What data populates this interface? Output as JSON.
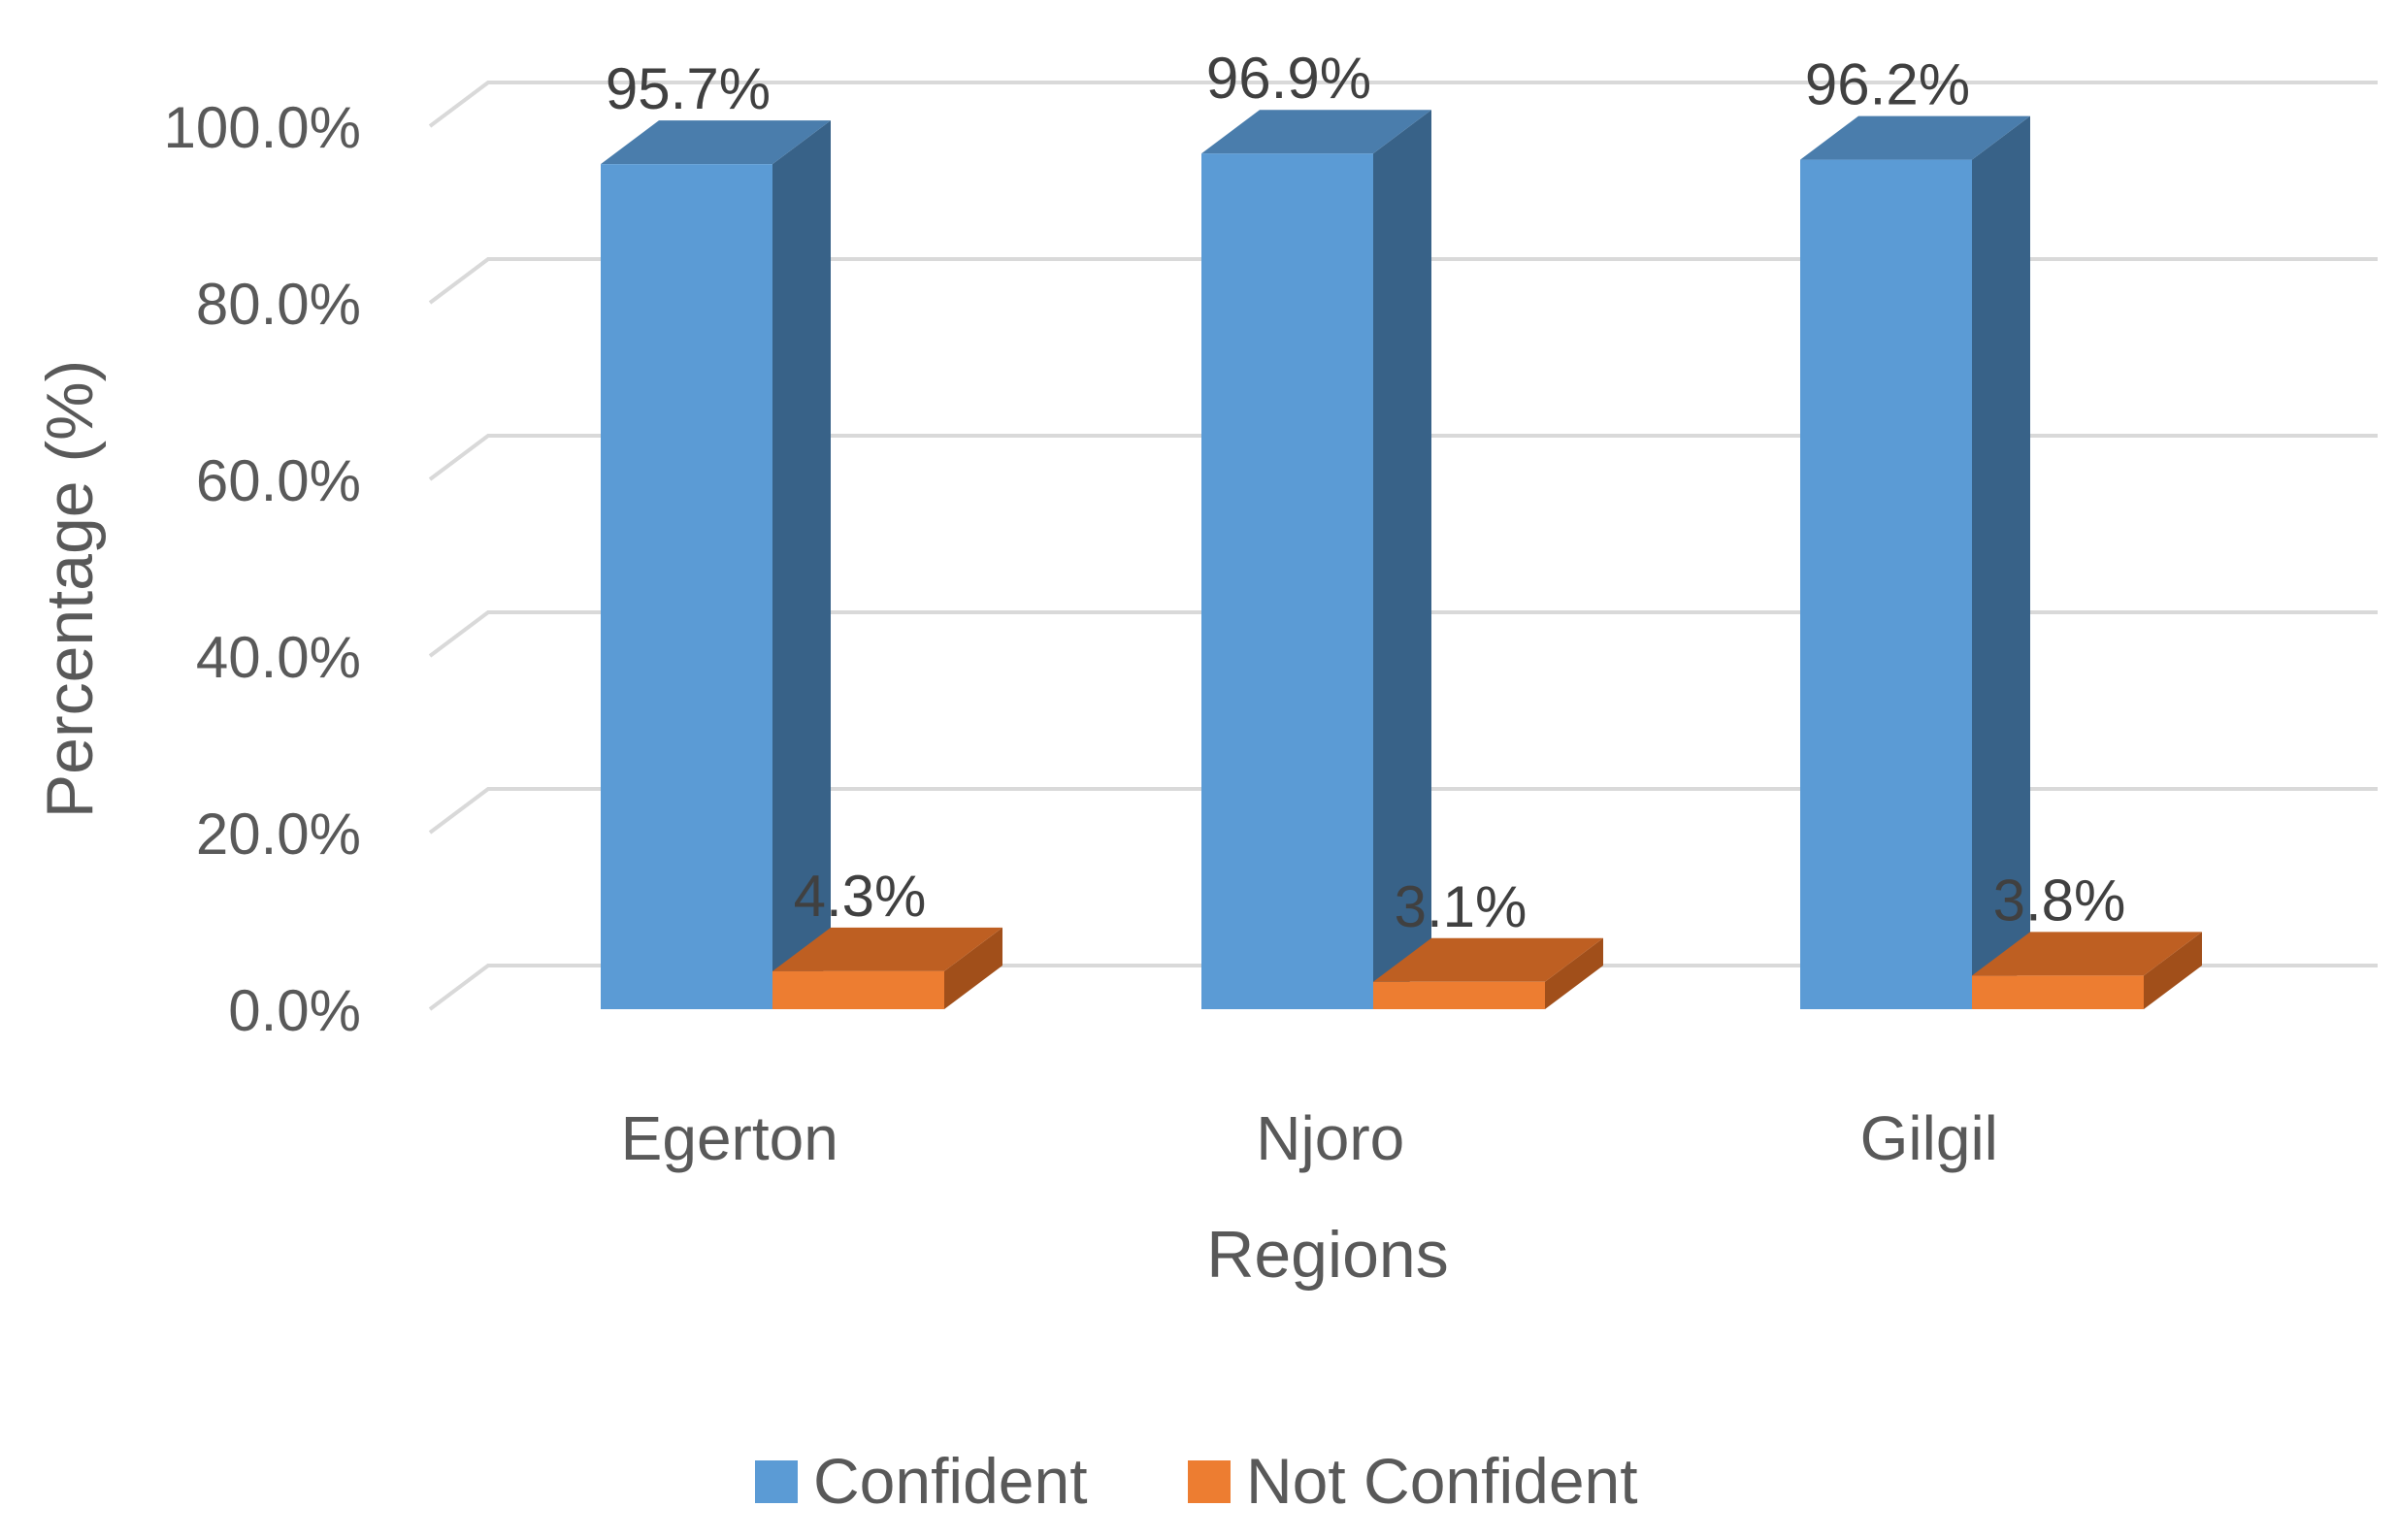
{
  "chart_data": {
    "type": "bar",
    "variant": "3d-clustered-column",
    "title": "",
    "xlabel": "Regions",
    "ylabel": "Percentage (%)",
    "categories": [
      "Egerton",
      "Njoro",
      "Gilgil"
    ],
    "series": [
      {
        "name": "Confident",
        "values": [
          95.7,
          96.9,
          96.2
        ],
        "labels": [
          "95.7%",
          "96.9%",
          "96.2%"
        ],
        "color": "#5B9BD5",
        "side_color": "#386288",
        "top_color": "#4A7DAC"
      },
      {
        "name": "Not Confident",
        "values": [
          4.3,
          3.1,
          3.8
        ],
        "labels": [
          "4.3%",
          "3.1%",
          "3.8%"
        ],
        "color": "#ED7D31",
        "side_color": "#A14F1A",
        "top_color": "#BE5F22"
      }
    ],
    "ylim": [
      0,
      100
    ],
    "yticks": [
      "0.0%",
      "20.0%",
      "40.0%",
      "60.0%",
      "80.0%",
      "100.0%"
    ],
    "grid": true,
    "legend": "bottom"
  }
}
